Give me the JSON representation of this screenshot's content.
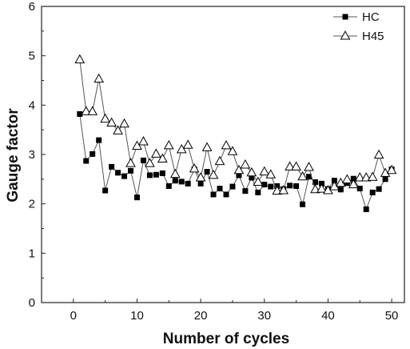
{
  "chart_data": {
    "type": "line",
    "xlabel": "Number of cycles",
    "ylabel": "Gauge factor",
    "xlim": [
      -5,
      52
    ],
    "ylim": [
      0,
      6
    ],
    "xticks": [
      0,
      10,
      20,
      30,
      40,
      50
    ],
    "yticks": [
      0,
      1,
      2,
      3,
      4,
      5,
      6
    ],
    "grid": false,
    "legend_position": "top-right",
    "series": [
      {
        "name": "HC",
        "marker": "filled-square",
        "color": "#000000",
        "line_color": "#555555",
        "x": [
          1,
          2,
          3,
          4,
          5,
          6,
          7,
          8,
          9,
          10,
          11,
          12,
          13,
          14,
          15,
          16,
          17,
          18,
          19,
          20,
          21,
          22,
          23,
          24,
          25,
          26,
          27,
          28,
          29,
          30,
          31,
          32,
          33,
          34,
          35,
          36,
          37,
          38,
          39,
          40,
          41,
          42,
          43,
          44,
          45,
          46,
          47,
          48,
          49,
          50
        ],
        "values": [
          3.82,
          2.87,
          3.01,
          3.29,
          2.27,
          2.75,
          2.63,
          2.56,
          2.67,
          2.13,
          2.88,
          2.58,
          2.59,
          2.62,
          2.36,
          2.47,
          2.45,
          2.41,
          2.7,
          2.41,
          2.65,
          2.19,
          2.31,
          2.19,
          2.35,
          2.58,
          2.26,
          2.53,
          2.23,
          2.39,
          2.35,
          2.36,
          2.3,
          2.37,
          2.36,
          1.99,
          2.55,
          2.44,
          2.41,
          2.3,
          2.47,
          2.29,
          2.42,
          2.51,
          2.31,
          1.89,
          2.23,
          2.3,
          2.5,
          2.7
        ]
      },
      {
        "name": "H45",
        "marker": "open-triangle",
        "color": "#000000",
        "line_color": "#555555",
        "x": [
          1,
          2,
          3,
          4,
          5,
          6,
          7,
          8,
          9,
          10,
          11,
          12,
          13,
          14,
          15,
          16,
          17,
          18,
          19,
          20,
          21,
          22,
          23,
          24,
          25,
          26,
          27,
          28,
          29,
          30,
          31,
          32,
          33,
          34,
          35,
          36,
          37,
          38,
          39,
          40,
          41,
          42,
          43,
          44,
          45,
          46,
          47,
          48,
          49,
          50
        ],
        "values": [
          4.92,
          3.87,
          3.87,
          4.53,
          3.72,
          3.64,
          3.48,
          3.62,
          2.82,
          3.17,
          3.26,
          2.82,
          3.01,
          2.91,
          3.18,
          2.6,
          3.1,
          3.19,
          2.71,
          2.53,
          3.14,
          2.58,
          2.86,
          3.18,
          3.06,
          2.68,
          2.79,
          2.63,
          2.44,
          2.65,
          2.59,
          2.26,
          2.27,
          2.75,
          2.75,
          2.55,
          2.74,
          2.29,
          2.3,
          2.27,
          2.35,
          2.42,
          2.49,
          2.39,
          2.53,
          2.53,
          2.54,
          2.99,
          2.62,
          2.68
        ]
      }
    ]
  }
}
